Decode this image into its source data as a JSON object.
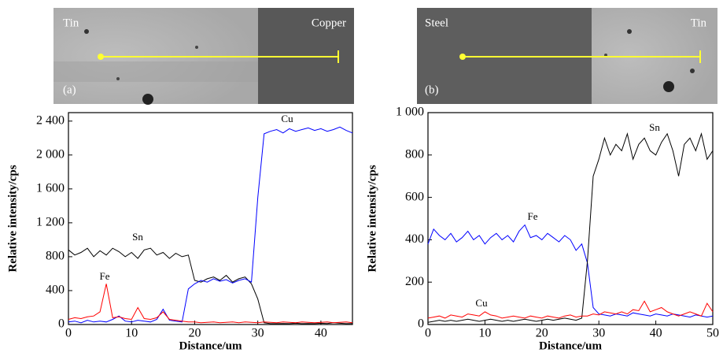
{
  "chart_data": [
    {
      "type": "line",
      "image_labels": {
        "left": "Tin",
        "right": "Copper",
        "panel": "(a)"
      },
      "x_label": "Distance/um",
      "y_label": "Relative intensity/cps",
      "x": [
        0,
        1,
        2,
        3,
        4,
        5,
        6,
        7,
        8,
        9,
        10,
        11,
        12,
        13,
        14,
        15,
        16,
        17,
        18,
        19,
        20,
        21,
        22,
        23,
        24,
        25,
        26,
        27,
        28,
        29,
        30,
        31,
        32,
        33,
        34,
        35,
        36,
        37,
        38,
        39,
        40,
        41,
        42,
        43,
        44,
        45
      ],
      "xlim": [
        0,
        45
      ],
      "xticks": [
        0,
        10,
        20,
        30,
        40
      ],
      "ylim": [
        0,
        2500
      ],
      "yticks": [
        0,
        400,
        800,
        {
          "value": 1200,
          "label": "1 200"
        },
        {
          "value": 1600,
          "label": "1 600"
        },
        {
          "value": 2000,
          "label": "2 000"
        },
        {
          "value": 2400,
          "label": "2 400"
        }
      ],
      "series": [
        {
          "name": "Sn",
          "color": "#000000",
          "values": [
            880,
            820,
            850,
            900,
            800,
            870,
            820,
            900,
            860,
            800,
            850,
            780,
            880,
            900,
            820,
            850,
            780,
            840,
            800,
            820,
            520,
            500,
            540,
            560,
            520,
            580,
            500,
            540,
            560,
            480,
            300,
            20,
            10,
            10,
            12,
            10,
            15,
            10,
            12,
            10,
            15,
            12,
            20,
            15,
            10,
            12
          ]
        },
        {
          "name": "Cu",
          "color": "#0000ff",
          "values": [
            30,
            40,
            20,
            50,
            30,
            40,
            30,
            60,
            100,
            40,
            30,
            50,
            40,
            30,
            60,
            180,
            50,
            40,
            30,
            420,
            480,
            520,
            500,
            540,
            510,
            530,
            490,
            520,
            540,
            500,
            1500,
            2250,
            2280,
            2300,
            2260,
            2310,
            2280,
            2300,
            2320,
            2290,
            2310,
            2280,
            2300,
            2330,
            2290,
            2260
          ]
        },
        {
          "name": "Fe",
          "color": "#ff0000",
          "values": [
            60,
            80,
            70,
            90,
            100,
            150,
            480,
            80,
            90,
            70,
            60,
            200,
            70,
            60,
            80,
            150,
            60,
            50,
            40,
            30,
            30,
            20,
            25,
            30,
            20,
            25,
            30,
            20,
            30,
            25,
            20,
            30,
            25,
            20,
            30,
            25,
            20,
            30,
            25,
            20,
            25,
            30,
            20,
            25,
            30,
            20
          ]
        }
      ]
    },
    {
      "type": "line",
      "image_labels": {
        "left": "Steel",
        "right": "Tin",
        "panel": "(b)"
      },
      "x_label": "Distance/um",
      "y_label": "Relative intensity/cps",
      "x": [
        0,
        1,
        2,
        3,
        4,
        5,
        6,
        7,
        8,
        9,
        10,
        11,
        12,
        13,
        14,
        15,
        16,
        17,
        18,
        19,
        20,
        21,
        22,
        23,
        24,
        25,
        26,
        27,
        28,
        29,
        30,
        31,
        32,
        33,
        34,
        35,
        36,
        37,
        38,
        39,
        40,
        41,
        42,
        43,
        44,
        45,
        46,
        47,
        48,
        49,
        50
      ],
      "xlim": [
        0,
        50
      ],
      "xticks": [
        0,
        10,
        20,
        30,
        40,
        50
      ],
      "ylim": [
        0,
        1000
      ],
      "yticks": [
        0,
        200,
        400,
        600,
        800,
        {
          "value": 1000,
          "label": "1 000"
        }
      ],
      "series": [
        {
          "name": "Fe",
          "color": "#0000ff",
          "values": [
            380,
            450,
            420,
            400,
            430,
            390,
            410,
            440,
            400,
            420,
            380,
            410,
            430,
            400,
            420,
            390,
            440,
            470,
            410,
            420,
            400,
            430,
            410,
            390,
            420,
            400,
            350,
            380,
            290,
            80,
            50,
            45,
            40,
            50,
            45,
            40,
            55,
            50,
            45,
            40,
            50,
            45,
            40,
            50,
            45,
            40,
            35,
            45,
            40,
            35,
            40
          ]
        },
        {
          "name": "Sn",
          "color": "#000000",
          "values": [
            10,
            15,
            20,
            15,
            20,
            15,
            20,
            25,
            20,
            15,
            20,
            25,
            20,
            15,
            20,
            15,
            20,
            25,
            20,
            15,
            20,
            25,
            20,
            25,
            30,
            25,
            20,
            30,
            300,
            700,
            780,
            880,
            800,
            850,
            820,
            900,
            780,
            850,
            880,
            820,
            800,
            860,
            900,
            820,
            700,
            850,
            880,
            820,
            900,
            780,
            820
          ]
        },
        {
          "name": "Cu",
          "color": "#ff0000",
          "values": [
            30,
            35,
            40,
            30,
            45,
            40,
            35,
            50,
            45,
            40,
            60,
            45,
            40,
            30,
            35,
            40,
            35,
            30,
            40,
            35,
            30,
            40,
            35,
            30,
            40,
            45,
            35,
            40,
            40,
            50,
            45,
            60,
            55,
            50,
            60,
            50,
            70,
            65,
            110,
            60,
            70,
            80,
            60,
            50,
            40,
            50,
            60,
            50,
            40,
            100,
            60
          ]
        }
      ]
    }
  ]
}
